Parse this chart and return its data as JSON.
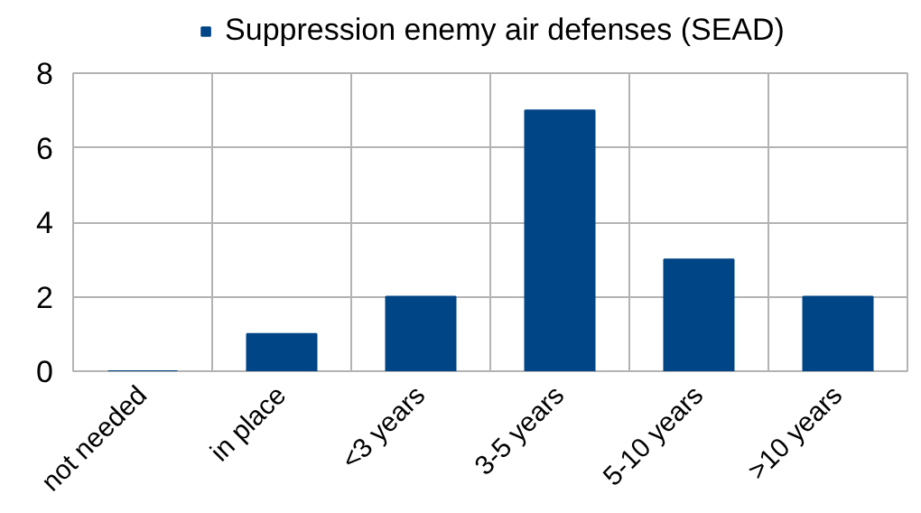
{
  "chart_data": {
    "type": "bar",
    "categories": [
      "not needed",
      "in place",
      "<3 years",
      "3-5 years",
      "5-10 years",
      ">10 years"
    ],
    "series": [
      {
        "name": "Suppression enemy air defenses (SEAD)",
        "color": "#004586",
        "values": [
          0,
          1,
          2,
          7,
          3,
          2
        ]
      }
    ],
    "ylim": [
      0,
      8
    ],
    "yticks": [
      0,
      2,
      4,
      6,
      8
    ],
    "grid": true,
    "legend": "top"
  }
}
